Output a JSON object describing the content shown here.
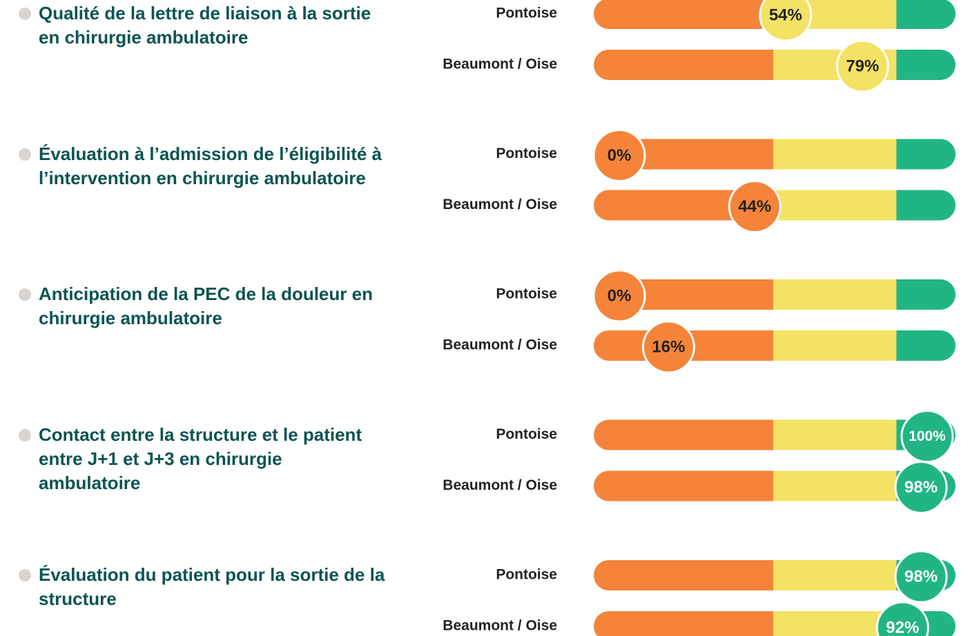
{
  "chart_data": [
    {
      "type": "bullet",
      "title": "Qualité de la lettre de liaison à la sortie en chirurgie ambulatoire",
      "categories": [
        "Pontoise",
        "Beaumont / Oise"
      ],
      "values": [
        54,
        79
      ],
      "value_labels": [
        "54%",
        "79%"
      ],
      "xlim": [
        0,
        100
      ],
      "thresholds": [
        50,
        90
      ],
      "colors": [
        "#f5843a",
        "#f4e264",
        "#22b584"
      ]
    },
    {
      "type": "bullet",
      "title": "Évaluation à l’admission de l’éligibilité à l’intervention en chirurgie ambulatoire",
      "categories": [
        "Pontoise",
        "Beaumont / Oise"
      ],
      "values": [
        0,
        44
      ],
      "value_labels": [
        "0%",
        "44%"
      ],
      "xlim": [
        0,
        100
      ],
      "thresholds": [
        50,
        90
      ],
      "colors": [
        "#f5843a",
        "#f4e264",
        "#22b584"
      ]
    },
    {
      "type": "bullet",
      "title": "Anticipation de la PEC de la douleur en chirurgie ambulatoire",
      "categories": [
        "Pontoise",
        "Beaumont / Oise"
      ],
      "values": [
        0,
        16
      ],
      "value_labels": [
        "0%",
        "16%"
      ],
      "xlim": [
        0,
        100
      ],
      "thresholds": [
        50,
        90
      ],
      "colors": [
        "#f5843a",
        "#f4e264",
        "#22b584"
      ]
    },
    {
      "type": "bullet",
      "title": "Contact entre la structure et le patient entre J+1 et J+3 en chirurgie ambulatoire",
      "categories": [
        "Pontoise",
        "Beaumont / Oise"
      ],
      "values": [
        100,
        98
      ],
      "value_labels": [
        "100%",
        "98%"
      ],
      "xlim": [
        0,
        100
      ],
      "thresholds": [
        50,
        90
      ],
      "colors": [
        "#f5843a",
        "#f4e264",
        "#22b584"
      ]
    },
    {
      "type": "bullet",
      "title": "Évaluation du patient pour la sortie de la structure",
      "categories": [
        "Pontoise",
        "Beaumont / Oise"
      ],
      "values": [
        98,
        92
      ],
      "value_labels": [
        "98%",
        "92%"
      ],
      "xlim": [
        0,
        100
      ],
      "thresholds": [
        50,
        90
      ],
      "colors": [
        "#f5843a",
        "#f4e264",
        "#22b584"
      ]
    }
  ]
}
